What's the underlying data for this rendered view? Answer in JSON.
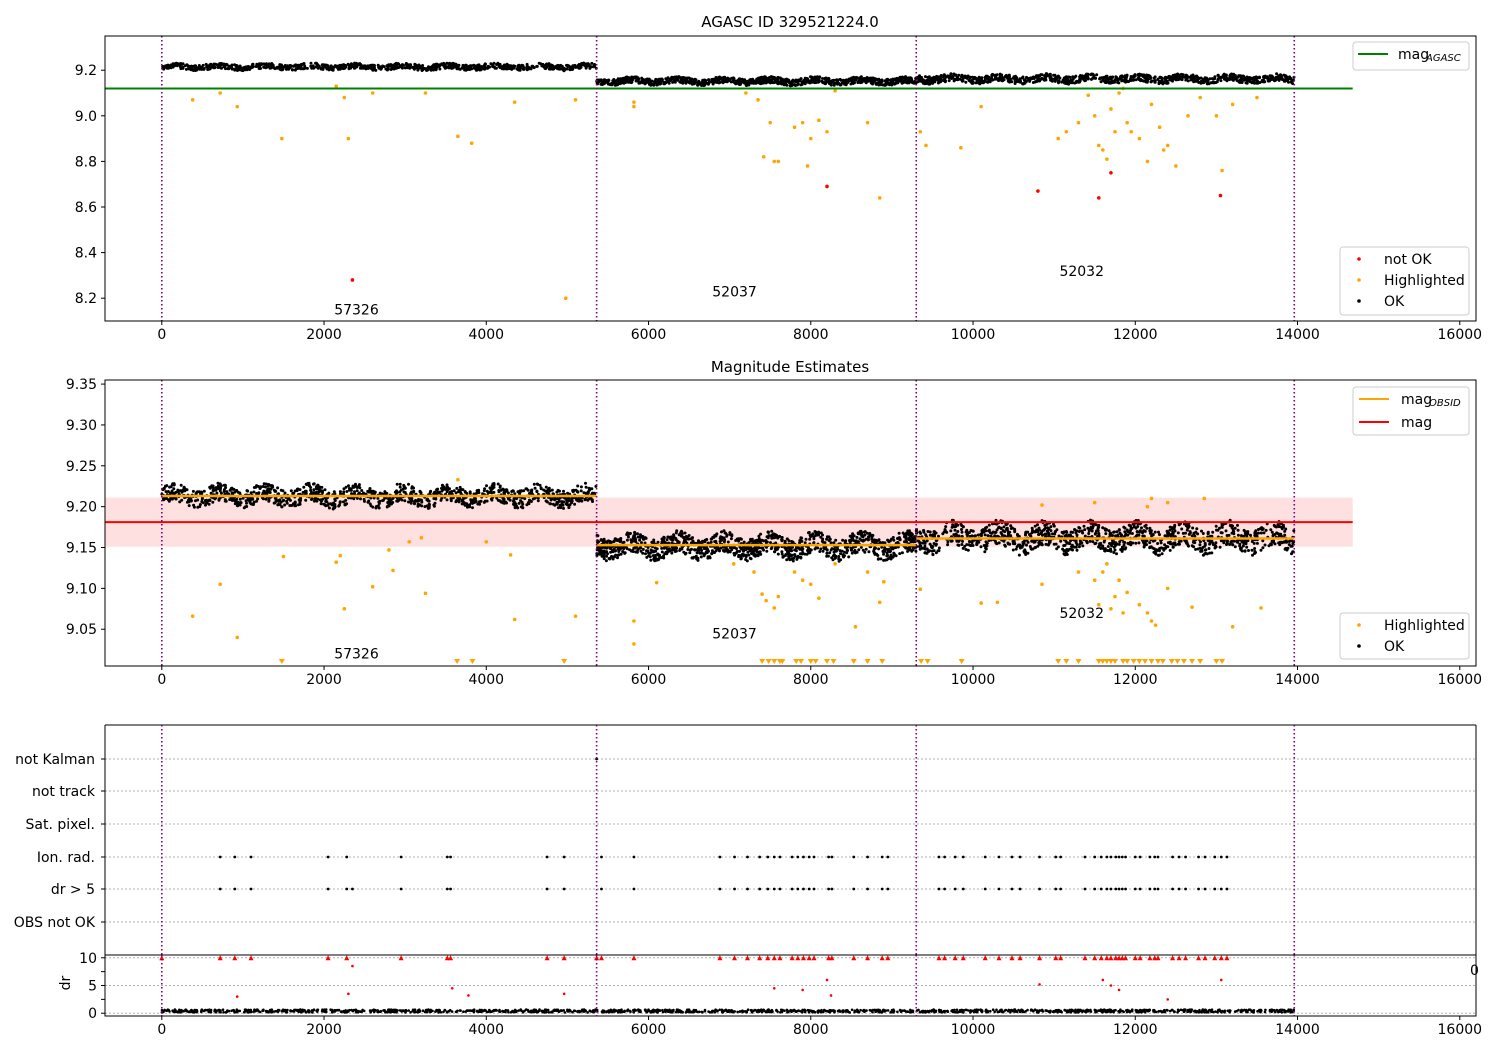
{
  "chart_data": [
    {
      "type": "scatter",
      "title": "AGASC ID 329521224.0",
      "xlim": [
        -700,
        16200
      ],
      "ylim": [
        8.1,
        9.35
      ],
      "x_ticks": [
        0,
        2000,
        4000,
        6000,
        8000,
        10000,
        12000,
        14000,
        16000
      ],
      "y_ticks": [
        8.2,
        8.4,
        8.6,
        8.8,
        9.0,
        9.2
      ],
      "y_tick_labels": [
        "8.2",
        "8.4",
        "8.6",
        "8.8",
        "9.0",
        "9.2"
      ],
      "obs_boundaries": [
        0,
        5360,
        9300,
        13960
      ],
      "obs_labels": [
        {
          "text": "57326",
          "x": 2400,
          "y": 8.15
        },
        {
          "text": "52037",
          "x": 7060,
          "y": 8.23
        },
        {
          "text": "52032",
          "x": 11340,
          "y": 8.32
        }
      ],
      "reference_line": {
        "name": "mag_AGASC",
        "value": 9.12,
        "x_range": [
          -700,
          14680
        ],
        "color": "#008000"
      },
      "ok_bands": [
        {
          "x_start": 0,
          "x_end": 5360,
          "center": 9.215,
          "spread": 0.012
        },
        {
          "x_start": 5360,
          "x_end": 9300,
          "center": 9.152,
          "spread": 0.014
        },
        {
          "x_start": 9300,
          "x_end": 13960,
          "center": 9.162,
          "spread": 0.016
        }
      ],
      "highlighted_points": [
        [
          380,
          9.07
        ],
        [
          720,
          9.1
        ],
        [
          930,
          9.04
        ],
        [
          1480,
          8.9
        ],
        [
          2150,
          9.13
        ],
        [
          2250,
          9.08
        ],
        [
          2300,
          8.9
        ],
        [
          2600,
          9.1
        ],
        [
          3250,
          9.1
        ],
        [
          3650,
          8.91
        ],
        [
          3820,
          8.88
        ],
        [
          4350,
          9.06
        ],
        [
          4980,
          8.2
        ],
        [
          5100,
          9.07
        ],
        [
          5820,
          9.04
        ],
        [
          5820,
          9.06
        ],
        [
          7200,
          9.1
        ],
        [
          7350,
          9.07
        ],
        [
          7420,
          8.82
        ],
        [
          7500,
          8.97
        ],
        [
          7550,
          8.8
        ],
        [
          7600,
          8.8
        ],
        [
          7800,
          8.95
        ],
        [
          7900,
          8.97
        ],
        [
          7960,
          8.78
        ],
        [
          8000,
          8.9
        ],
        [
          8100,
          8.98
        ],
        [
          8200,
          8.93
        ],
        [
          8300,
          9.11
        ],
        [
          8700,
          8.97
        ],
        [
          8850,
          8.64
        ],
        [
          9350,
          8.93
        ],
        [
          9420,
          8.87
        ],
        [
          9850,
          8.86
        ],
        [
          10100,
          9.04
        ],
        [
          11050,
          8.9
        ],
        [
          11150,
          8.93
        ],
        [
          11300,
          8.97
        ],
        [
          11420,
          9.09
        ],
        [
          11500,
          9.0
        ],
        [
          11550,
          8.87
        ],
        [
          11600,
          8.85
        ],
        [
          11650,
          8.81
        ],
        [
          11700,
          9.03
        ],
        [
          11750,
          8.93
        ],
        [
          11800,
          9.1
        ],
        [
          11850,
          9.12
        ],
        [
          11900,
          8.97
        ],
        [
          11950,
          8.93
        ],
        [
          12050,
          8.9
        ],
        [
          12150,
          8.8
        ],
        [
          12200,
          9.05
        ],
        [
          12300,
          8.95
        ],
        [
          12350,
          8.85
        ],
        [
          12400,
          8.87
        ],
        [
          12500,
          8.78
        ],
        [
          12650,
          9.0
        ],
        [
          12800,
          9.08
        ],
        [
          13000,
          9.0
        ],
        [
          13070,
          8.76
        ],
        [
          13200,
          9.05
        ],
        [
          13500,
          9.08
        ]
      ],
      "not_ok_points": [
        [
          2350,
          8.28
        ],
        [
          8200,
          8.69
        ],
        [
          10800,
          8.67
        ],
        [
          11550,
          8.64
        ],
        [
          11700,
          8.75
        ],
        [
          13050,
          8.65
        ]
      ],
      "legend": [
        {
          "label": "mag_AGASC",
          "color": "#008000",
          "kind": "line"
        },
        {
          "label": "not OK",
          "color": "#ff0000",
          "kind": "point"
        },
        {
          "label": "Highlighted",
          "color": "#ffa500",
          "kind": "point"
        },
        {
          "label": "OK",
          "color": "#000000",
          "kind": "point"
        }
      ]
    },
    {
      "type": "scatter",
      "title": "Magnitude Estimates",
      "xlim": [
        -700,
        16200
      ],
      "ylim": [
        9.005,
        9.355
      ],
      "x_ticks": [
        0,
        2000,
        4000,
        6000,
        8000,
        10000,
        12000,
        14000,
        16000
      ],
      "y_ticks": [
        9.05,
        9.1,
        9.15,
        9.2,
        9.25,
        9.3,
        9.35
      ],
      "y_tick_labels": [
        "9.05",
        "9.10",
        "9.15",
        "9.20",
        "9.25",
        "9.30",
        "9.35"
      ],
      "obs_boundaries": [
        0,
        5360,
        9300,
        13960
      ],
      "obs_labels": [
        {
          "text": "57326",
          "x": 2400,
          "y": 9.02
        },
        {
          "text": "52037",
          "x": 7060,
          "y": 9.045
        },
        {
          "text": "52032",
          "x": 11340,
          "y": 9.07
        }
      ],
      "mag": {
        "value": 9.181,
        "band": [
          9.151,
          9.211
        ],
        "x_range": [
          -700,
          14680
        ],
        "color": "#ff0000"
      },
      "mag_obsid": [
        {
          "x_start": 0,
          "x_end": 5360,
          "value": 9.213
        },
        {
          "x_start": 5360,
          "x_end": 9300,
          "value": 9.153
        },
        {
          "x_start": 9300,
          "x_end": 13960,
          "value": 9.161
        }
      ],
      "ok_bands": [
        {
          "x_start": 0,
          "x_end": 5360,
          "center": 9.213,
          "spread": 0.011
        },
        {
          "x_start": 5360,
          "x_end": 9300,
          "center": 9.152,
          "spread": 0.013
        },
        {
          "x_start": 9300,
          "x_end": 13960,
          "center": 9.162,
          "spread": 0.015
        }
      ],
      "highlighted_points": [
        [
          380,
          9.066
        ],
        [
          720,
          9.105
        ],
        [
          930,
          9.04
        ],
        [
          1500,
          9.139
        ],
        [
          2150,
          9.132
        ],
        [
          2200,
          9.14
        ],
        [
          2250,
          9.075
        ],
        [
          2600,
          9.102
        ],
        [
          2800,
          9.147
        ],
        [
          2850,
          9.122
        ],
        [
          3050,
          9.157
        ],
        [
          3200,
          9.162
        ],
        [
          3250,
          9.094
        ],
        [
          3650,
          9.233
        ],
        [
          4000,
          9.157
        ],
        [
          4350,
          9.062
        ],
        [
          4300,
          9.141
        ],
        [
          5100,
          9.066
        ],
        [
          5820,
          9.06
        ],
        [
          5820,
          9.032
        ],
        [
          6100,
          9.107
        ],
        [
          7050,
          9.13
        ],
        [
          7300,
          9.12
        ],
        [
          7400,
          9.093
        ],
        [
          7450,
          9.085
        ],
        [
          7550,
          9.076
        ],
        [
          7600,
          9.09
        ],
        [
          7800,
          9.12
        ],
        [
          7900,
          9.11
        ],
        [
          8000,
          9.105
        ],
        [
          8100,
          9.088
        ],
        [
          8300,
          9.13
        ],
        [
          8550,
          9.053
        ],
        [
          8700,
          9.12
        ],
        [
          8850,
          9.083
        ],
        [
          8900,
          9.108
        ],
        [
          9350,
          9.099
        ],
        [
          10100,
          9.082
        ],
        [
          10300,
          9.083
        ],
        [
          10850,
          9.105
        ],
        [
          11300,
          9.12
        ],
        [
          11500,
          9.11
        ],
        [
          11550,
          9.08
        ],
        [
          11600,
          9.12
        ],
        [
          11650,
          9.13
        ],
        [
          11700,
          9.075
        ],
        [
          11750,
          9.09
        ],
        [
          11800,
          9.11
        ],
        [
          11850,
          9.07
        ],
        [
          11900,
          9.095
        ],
        [
          12050,
          9.08
        ],
        [
          12150,
          9.07
        ],
        [
          12200,
          9.06
        ],
        [
          12250,
          9.055
        ],
        [
          12400,
          9.1
        ],
        [
          12700,
          9.077
        ],
        [
          13200,
          9.053
        ],
        [
          13550,
          9.076
        ],
        [
          12150,
          9.2
        ],
        [
          12200,
          9.21
        ],
        [
          12400,
          9.205
        ],
        [
          12850,
          9.21
        ],
        [
          11500,
          9.205
        ],
        [
          10850,
          9.202
        ]
      ],
      "below_range_markers": [
        1480,
        3640,
        3830,
        4960,
        7400,
        7480,
        7550,
        7620,
        7650,
        7820,
        7880,
        8000,
        8060,
        8200,
        8280,
        8530,
        8700,
        8880,
        9360,
        9440,
        9860,
        11050,
        11150,
        11300,
        11550,
        11600,
        11650,
        11700,
        11750,
        11850,
        11900,
        11980,
        12050,
        12120,
        12200,
        12280,
        12340,
        12450,
        12520,
        12600,
        12700,
        12800,
        13000,
        13070
      ],
      "legend": [
        {
          "label": "mag_OBSID",
          "color": "#ffa500",
          "kind": "line"
        },
        {
          "label": "mag",
          "color": "#ff0000",
          "kind": "line"
        },
        {
          "label": "Highlighted",
          "color": "#ffa500",
          "kind": "point"
        },
        {
          "label": "OK",
          "color": "#000000",
          "kind": "point"
        }
      ]
    },
    {
      "type": "scatter",
      "title": "",
      "xlim": [
        -700,
        16200
      ],
      "flag_rows": [
        "not Kalman",
        "not track",
        "Sat. pixel.",
        "Ion. rad.",
        "dr > 5",
        "OBS not OK"
      ],
      "flag_points": {
        "not Kalman": [
          5360
        ],
        "not track": [],
        "Sat. pixel.": [],
        "Ion. rad.": [
          720,
          900,
          1100,
          2050,
          2280,
          2950,
          3520,
          3560,
          4750,
          4960,
          5420,
          5820,
          6880,
          7060,
          7220,
          7370,
          7470,
          7550,
          7620,
          7770,
          7840,
          7910,
          7980,
          8040,
          8220,
          8260,
          8530,
          8700,
          8880,
          8950,
          9580,
          9650,
          9780,
          9880,
          10150,
          10320,
          10480,
          10580,
          10820,
          11020,
          11080,
          11380,
          11500,
          11580,
          11650,
          11700,
          11760,
          11800,
          11840,
          11880,
          12000,
          12060,
          12180,
          12240,
          12280,
          12460,
          12540,
          12620,
          12780,
          12860,
          12980,
          13060,
          13130
        ],
        "dr > 5": [
          720,
          900,
          1100,
          2050,
          2280,
          2350,
          2950,
          3520,
          3560,
          4750,
          4960,
          5420,
          5820,
          6880,
          7060,
          7220,
          7370,
          7470,
          7550,
          7620,
          7770,
          7840,
          7910,
          7980,
          8040,
          8220,
          8260,
          8530,
          8700,
          8880,
          8950,
          9580,
          9650,
          9780,
          9880,
          10150,
          10320,
          10480,
          10580,
          10820,
          11020,
          11080,
          11380,
          11500,
          11580,
          11650,
          11700,
          11760,
          11800,
          11840,
          11880,
          12000,
          12060,
          12180,
          12240,
          12280,
          12460,
          12540,
          12620,
          12780,
          12860,
          12980,
          13060,
          13130
        ],
        "OBS not OK": []
      },
      "obs_boundaries": [
        0,
        5360,
        9300,
        13960
      ]
    },
    {
      "type": "scatter",
      "ylabel": "dr",
      "xlim": [
        -700,
        16200
      ],
      "ylim": [
        -0.5,
        10.5
      ],
      "x_ticks": [
        0,
        2000,
        4000,
        6000,
        8000,
        10000,
        12000,
        14000,
        16000
      ],
      "y_ticks": [
        0,
        5,
        10
      ],
      "y_tick_labels": [
        "0",
        "5",
        "10"
      ],
      "obs_boundaries": [
        0,
        5360,
        9300,
        13960
      ],
      "clipped_markers_x": [
        0,
        720,
        900,
        1100,
        2050,
        2280,
        2950,
        3520,
        3560,
        4750,
        4960,
        5360,
        5420,
        5820,
        6880,
        7060,
        7220,
        7370,
        7470,
        7550,
        7620,
        7770,
        7840,
        7910,
        7980,
        8040,
        8220,
        8260,
        8530,
        8700,
        8880,
        8950,
        9580,
        9650,
        9780,
        9880,
        10150,
        10320,
        10480,
        10580,
        10820,
        11020,
        11080,
        11380,
        11500,
        11580,
        11650,
        11700,
        11760,
        11800,
        11840,
        11880,
        12000,
        12060,
        12180,
        12240,
        12280,
        12460,
        12540,
        12620,
        12780,
        12860,
        12980,
        13060,
        13130
      ],
      "outlier_points": [
        [
          2350,
          8.5
        ],
        [
          930,
          3.0
        ],
        [
          2300,
          3.5
        ],
        [
          3580,
          4.5
        ],
        [
          3780,
          3.2
        ],
        [
          4960,
          3.5
        ],
        [
          7550,
          4.5
        ],
        [
          7900,
          4.2
        ],
        [
          8200,
          6.0
        ],
        [
          8250,
          3.2
        ],
        [
          10820,
          5.2
        ],
        [
          11600,
          6.0
        ],
        [
          11700,
          5.0
        ],
        [
          11800,
          4.2
        ],
        [
          13060,
          6.0
        ],
        [
          12400,
          2.5
        ]
      ],
      "baseline": {
        "value": 0.3,
        "spread": 0.25,
        "x_range": [
          0,
          13960
        ]
      }
    }
  ],
  "stray_tick_label": "0"
}
